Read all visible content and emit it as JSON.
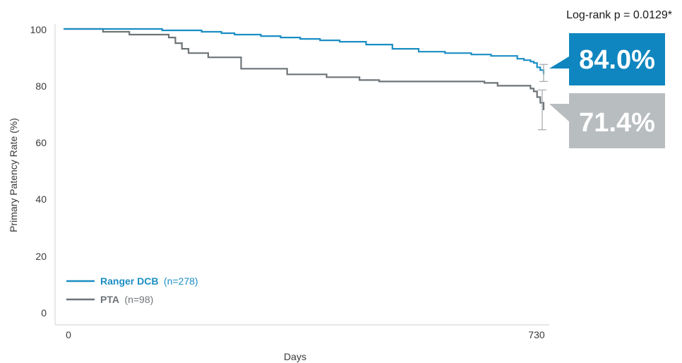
{
  "chart_data": {
    "type": "line",
    "title": "",
    "annotation": "Log-rank p = 0.0129*",
    "xlabel": "Days",
    "ylabel": "Primary Patency Rate (%)",
    "xlim": [
      0,
      730
    ],
    "ylim": [
      0,
      100
    ],
    "x_ticks": [
      "0",
      "730"
    ],
    "y_ticks": [
      "0",
      "20",
      "40",
      "60",
      "80",
      "100"
    ],
    "grid": false,
    "legend_position": "bottom-left",
    "colors": {
      "ranger": "#1b8ec4",
      "pta": "#6d7478",
      "ranger_box": "#0f86bf",
      "pta_box": "#b8bdc0",
      "error_bar": "#a9aeb1"
    },
    "series": [
      {
        "name": "Ranger DCB",
        "n_label": "(n=278)",
        "final_label": "84.0%",
        "error_bar": [
          81.5,
          87.5
        ],
        "x": [
          0,
          40,
          100,
          150,
          210,
          240,
          260,
          300,
          330,
          360,
          390,
          420,
          460,
          500,
          540,
          580,
          620,
          650,
          690,
          700,
          710,
          715,
          720,
          725,
          730
        ],
        "y": [
          100,
          100,
          100,
          99.5,
          99,
          98.5,
          98,
          97.5,
          97,
          96.5,
          96,
          95.5,
          94.5,
          93,
          92,
          91.5,
          91,
          90.5,
          89.5,
          89,
          88.5,
          88,
          86.5,
          85.5,
          84.0
        ]
      },
      {
        "name": "PTA",
        "n_label": "(n=98)",
        "final_label": "71.4%",
        "error_bar": [
          64.5,
          78.5
        ],
        "x": [
          0,
          40,
          60,
          100,
          150,
          160,
          170,
          180,
          190,
          220,
          260,
          270,
          300,
          340,
          390,
          400,
          450,
          480,
          500,
          550,
          600,
          640,
          660,
          690,
          700,
          705,
          710,
          715,
          720,
          725,
          730
        ],
        "y": [
          100,
          100,
          99,
          98,
          98,
          97,
          95,
          93,
          91.5,
          90,
          90,
          86,
          86,
          84,
          84,
          83,
          82,
          81.5,
          81.5,
          81.5,
          81.5,
          81,
          80,
          80,
          80,
          80,
          79,
          78,
          76,
          74,
          71.4
        ]
      }
    ]
  }
}
